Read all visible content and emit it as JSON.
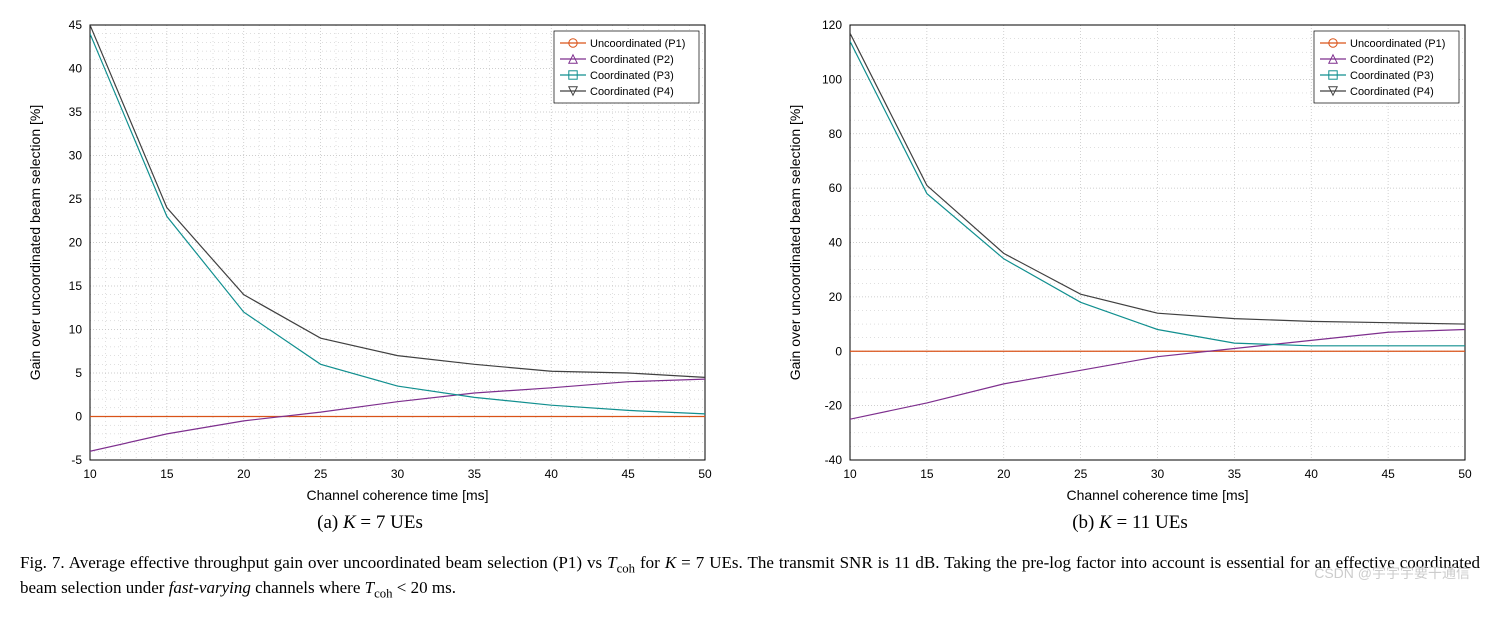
{
  "panelA": {
    "type": "line",
    "subcaption_prefix": "(a) ",
    "subcaption_K": "K",
    "subcaption_eq": " = 7 UEs",
    "xlabel": "Channel coherence time [ms]",
    "ylabel": "Gain over uncoordinated beam selection [%]",
    "xlim": [
      10,
      50
    ],
    "ylim": [
      -5,
      45
    ],
    "xticks": [
      10,
      15,
      20,
      25,
      30,
      35,
      40,
      45,
      50
    ],
    "yticks": [
      -5,
      0,
      5,
      10,
      15,
      20,
      25,
      30,
      35,
      40,
      45
    ],
    "minor_step": 1,
    "background_color": "#ffffff",
    "axis_color": "#000000",
    "grid_color": "#bfbfbf",
    "label_fontsize": 14,
    "tick_fontsize": 12,
    "series": [
      {
        "name": "Uncoordinated (P1)",
        "color": "#d95319",
        "marker": "circle",
        "x": [
          10,
          15,
          20,
          25,
          30,
          35,
          40,
          45,
          50
        ],
        "y": [
          0,
          0,
          0,
          0,
          0,
          0,
          0,
          0,
          0
        ]
      },
      {
        "name": "Coordinated (P2)",
        "color": "#7e2f8e",
        "marker": "triangle-up",
        "x": [
          10,
          15,
          20,
          25,
          30,
          35,
          40,
          45,
          50
        ],
        "y": [
          -4,
          -2,
          -0.5,
          0.5,
          1.7,
          2.7,
          3.3,
          4.0,
          4.3
        ]
      },
      {
        "name": "Coordinated (P3)",
        "color": "#118f8f",
        "marker": "square",
        "x": [
          10,
          15,
          20,
          25,
          30,
          35,
          40,
          45,
          50
        ],
        "y": [
          44,
          23,
          12,
          6,
          3.5,
          2.2,
          1.3,
          0.7,
          0.3
        ]
      },
      {
        "name": "Coordinated (P4)",
        "color": "#404040",
        "marker": "triangle-down",
        "x": [
          10,
          15,
          20,
          25,
          30,
          35,
          40,
          45,
          50
        ],
        "y": [
          45,
          24,
          14,
          9,
          7,
          6,
          5.2,
          5,
          4.5
        ]
      }
    ],
    "legend": {
      "position": "top-right",
      "border_color": "#000000",
      "bg": "#ffffff",
      "fontsize": 11,
      "items": [
        "Uncoordinated (P1)",
        "Coordinated (P2)",
        "Coordinated (P3)",
        "Coordinated (P4)"
      ]
    }
  },
  "panelB": {
    "type": "line",
    "subcaption_prefix": "(b) ",
    "subcaption_K": "K",
    "subcaption_eq": " = 11 UEs",
    "xlabel": "Channel coherence time [ms]",
    "ylabel": "Gain over uncoordinated beam selection [%]",
    "xlim": [
      10,
      50
    ],
    "ylim": [
      -40,
      120
    ],
    "xticks": [
      10,
      15,
      20,
      25,
      30,
      35,
      40,
      45,
      50
    ],
    "yticks": [
      -40,
      -20,
      0,
      20,
      40,
      60,
      80,
      100,
      120
    ],
    "minor_step": 5,
    "background_color": "#ffffff",
    "axis_color": "#000000",
    "grid_color": "#bfbfbf",
    "label_fontsize": 14,
    "tick_fontsize": 12,
    "series": [
      {
        "name": "Uncoordinated (P1)",
        "color": "#d95319",
        "marker": "circle",
        "x": [
          10,
          15,
          20,
          25,
          30,
          35,
          40,
          45,
          50
        ],
        "y": [
          0,
          0,
          0,
          0,
          0,
          0,
          0,
          0,
          0
        ]
      },
      {
        "name": "Coordinated (P2)",
        "color": "#7e2f8e",
        "marker": "triangle-up",
        "x": [
          10,
          15,
          20,
          25,
          30,
          35,
          40,
          45,
          50
        ],
        "y": [
          -25,
          -19,
          -12,
          -7,
          -2,
          1,
          4,
          7,
          8
        ]
      },
      {
        "name": "Coordinated (P3)",
        "color": "#118f8f",
        "marker": "square",
        "x": [
          10,
          15,
          20,
          25,
          30,
          35,
          40,
          45,
          50
        ],
        "y": [
          114,
          58,
          34,
          18,
          8,
          3,
          2,
          2,
          2
        ]
      },
      {
        "name": "Coordinated (P4)",
        "color": "#404040",
        "marker": "triangle-down",
        "x": [
          10,
          15,
          20,
          25,
          30,
          35,
          40,
          45,
          50
        ],
        "y": [
          117,
          61,
          36,
          21,
          14,
          12,
          11,
          10.5,
          10
        ]
      }
    ],
    "legend": {
      "position": "top-right",
      "border_color": "#000000",
      "bg": "#ffffff",
      "fontsize": 11,
      "items": [
        "Uncoordinated (P1)",
        "Coordinated (P2)",
        "Coordinated (P3)",
        "Coordinated (P4)"
      ]
    }
  },
  "caption": {
    "lead": "Fig. 7.   Average effective throughput gain over uncoordinated beam selection (P1) vs ",
    "Tcoh": "T",
    "Tcoh_sub": "coh",
    "mid1": " for ",
    "K": "K",
    "mid2": " = 7 UEs. The transmit SNR is 11 dB. Taking the pre-log factor into account is essential for an effective coordinated beam selection under ",
    "fast": "fast-varying",
    "mid3": " channels where ",
    "tail": " < 20 ms."
  },
  "watermark": "CSDN @宇宇宇要干通信"
}
